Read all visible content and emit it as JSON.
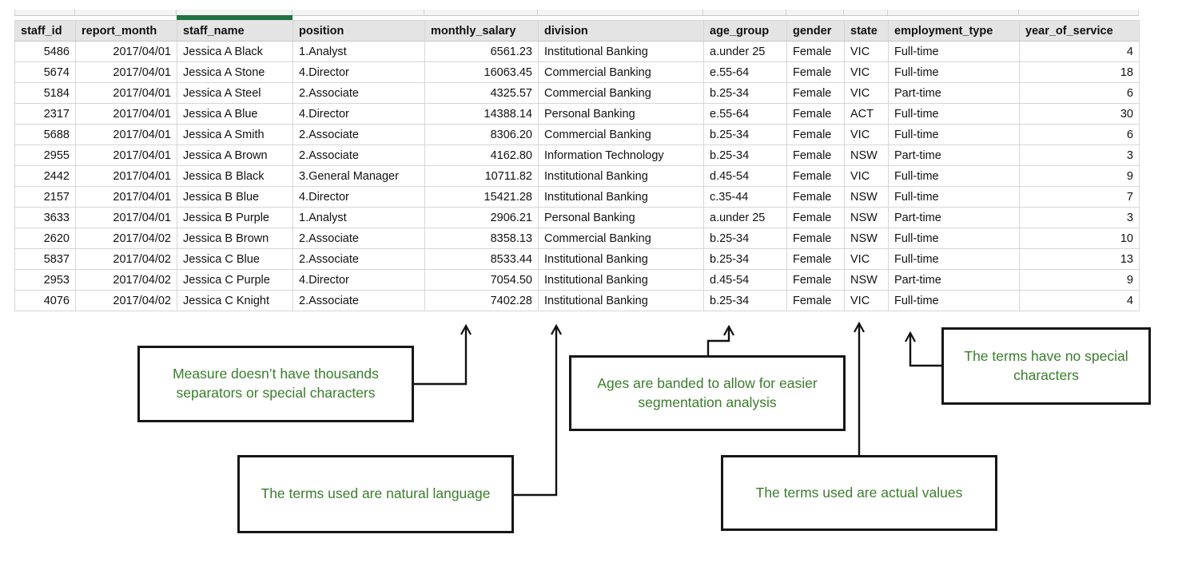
{
  "table": {
    "columns": [
      "staff_id",
      "report_month",
      "staff_name",
      "position",
      "monthly_salary",
      "division",
      "age_group",
      "gender",
      "state",
      "employment_type",
      "year_of_service"
    ],
    "selected_column": "staff_name",
    "rows": [
      [
        "5486",
        "2017/04/01",
        "Jessica A Black",
        "1.Analyst",
        "6561.23",
        "Institutional Banking",
        "a.under 25",
        "Female",
        "VIC",
        "Full-time",
        "4"
      ],
      [
        "5674",
        "2017/04/01",
        "Jessica A Stone",
        "4.Director",
        "16063.45",
        "Commercial Banking",
        "e.55-64",
        "Female",
        "VIC",
        "Full-time",
        "18"
      ],
      [
        "5184",
        "2017/04/01",
        "Jessica A Steel",
        "2.Associate",
        "4325.57",
        "Commercial Banking",
        "b.25-34",
        "Female",
        "VIC",
        "Part-time",
        "6"
      ],
      [
        "2317",
        "2017/04/01",
        "Jessica A Blue",
        "4.Director",
        "14388.14",
        "Personal Banking",
        "e.55-64",
        "Female",
        "ACT",
        "Full-time",
        "30"
      ],
      [
        "5688",
        "2017/04/01",
        "Jessica A Smith",
        "2.Associate",
        "8306.20",
        "Commercial Banking",
        "b.25-34",
        "Female",
        "VIC",
        "Full-time",
        "6"
      ],
      [
        "2955",
        "2017/04/01",
        "Jessica A Brown",
        "2.Associate",
        "4162.80",
        "Information Technology",
        "b.25-34",
        "Female",
        "NSW",
        "Part-time",
        "3"
      ],
      [
        "2442",
        "2017/04/01",
        "Jessica B Black",
        "3.General Manager",
        "10711.82",
        "Institutional Banking",
        "d.45-54",
        "Female",
        "VIC",
        "Full-time",
        "9"
      ],
      [
        "2157",
        "2017/04/01",
        "Jessica B Blue",
        "4.Director",
        "15421.28",
        "Institutional Banking",
        "c.35-44",
        "Female",
        "NSW",
        "Full-time",
        "7"
      ],
      [
        "3633",
        "2017/04/01",
        "Jessica B Purple",
        "1.Analyst",
        "2906.21",
        "Personal Banking",
        "a.under 25",
        "Female",
        "NSW",
        "Part-time",
        "3"
      ],
      [
        "2620",
        "2017/04/02",
        "Jessica B Brown",
        "2.Associate",
        "8358.13",
        "Commercial Banking",
        "b.25-34",
        "Female",
        "NSW",
        "Full-time",
        "10"
      ],
      [
        "5837",
        "2017/04/02",
        "Jessica C Blue",
        "2.Associate",
        "8533.44",
        "Institutional Banking",
        "b.25-34",
        "Female",
        "VIC",
        "Full-time",
        "13"
      ],
      [
        "2953",
        "2017/04/02",
        "Jessica C Purple",
        "4.Director",
        "7054.50",
        "Institutional Banking",
        "d.45-54",
        "Female",
        "NSW",
        "Part-time",
        "9"
      ],
      [
        "4076",
        "2017/04/02",
        "Jessica C Knight",
        "2.Associate",
        "7402.28",
        "Institutional Banking",
        "b.25-34",
        "Female",
        "VIC",
        "Full-time",
        "4"
      ]
    ]
  },
  "annotations": [
    {
      "text": "Measure doesn’t have thousands separators or special characters",
      "target_column": "monthly_salary"
    },
    {
      "text": "Ages are banded to allow for easier segmentation analysis",
      "target_column": "age_group"
    },
    {
      "text": "The terms have no special characters",
      "target_column": "employment_type"
    },
    {
      "text": "The terms used are natural language",
      "target_column": "division"
    },
    {
      "text": "The terms used are actual values",
      "target_column": "state"
    }
  ],
  "colors": {
    "annotation_text": "#3a7d2c",
    "annotation_border": "#161616",
    "selection_bar_green": "#207144",
    "header_bg": "#e4e4e4",
    "grid_line": "#d6d6d6",
    "arrow": "#111111"
  }
}
